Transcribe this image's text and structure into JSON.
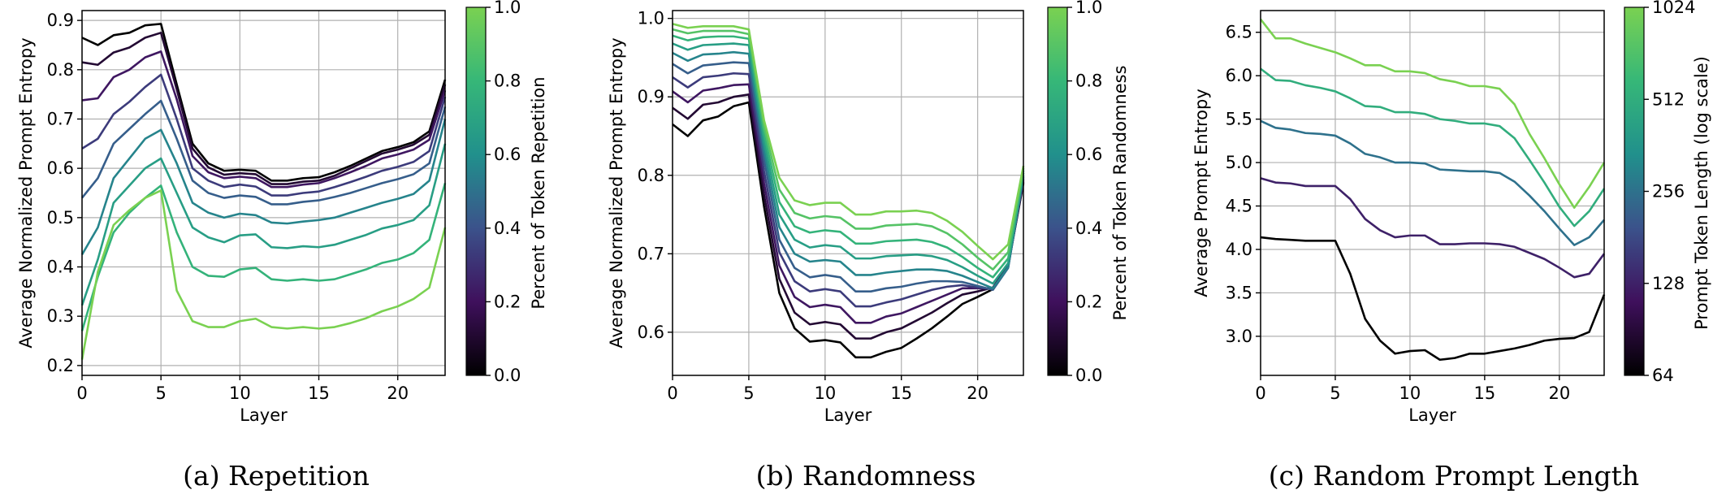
{
  "chart_data": [
    {
      "type": "line",
      "caption": "(a) Repetition",
      "xlabel": "Layer",
      "ylabel": "Average Normalized Prompt Entropy",
      "xlim": [
        0,
        23
      ],
      "ylim": [
        0.18,
        0.92
      ],
      "xticks": [
        0,
        5,
        10,
        15,
        20
      ],
      "yticks": [
        0.2,
        0.3,
        0.4,
        0.5,
        0.6,
        0.7,
        0.8,
        0.9
      ],
      "grid": true,
      "colorbar": {
        "label": "Percent of Token Repetition",
        "ticks": [
          "0.0",
          "0.2",
          "0.4",
          "0.6",
          "0.8",
          "1.0"
        ],
        "scale": "linear",
        "range": [
          0,
          1
        ]
      },
      "series": [
        {
          "c": 0.0,
          "values": [
            0.865,
            0.85,
            0.87,
            0.875,
            0.89,
            0.893,
            0.77,
            0.65,
            0.61,
            0.595,
            0.597,
            0.595,
            0.575,
            0.575,
            0.58,
            0.582,
            0.592,
            0.605,
            0.62,
            0.635,
            0.643,
            0.653,
            0.675,
            0.78
          ]
        },
        {
          "c": 0.11,
          "values": [
            0.815,
            0.81,
            0.835,
            0.845,
            0.865,
            0.875,
            0.76,
            0.64,
            0.602,
            0.587,
            0.59,
            0.588,
            0.568,
            0.568,
            0.573,
            0.575,
            0.585,
            0.6,
            0.615,
            0.63,
            0.638,
            0.648,
            0.668,
            0.77
          ]
        },
        {
          "c": 0.22,
          "values": [
            0.738,
            0.742,
            0.785,
            0.8,
            0.825,
            0.837,
            0.74,
            0.625,
            0.592,
            0.58,
            0.583,
            0.58,
            0.562,
            0.562,
            0.567,
            0.57,
            0.58,
            0.592,
            0.605,
            0.62,
            0.628,
            0.638,
            0.658,
            0.758
          ]
        },
        {
          "c": 0.33,
          "values": [
            0.64,
            0.66,
            0.71,
            0.735,
            0.765,
            0.79,
            0.7,
            0.6,
            0.575,
            0.562,
            0.567,
            0.563,
            0.545,
            0.545,
            0.55,
            0.553,
            0.562,
            0.572,
            0.583,
            0.595,
            0.603,
            0.613,
            0.635,
            0.745
          ]
        },
        {
          "c": 0.44,
          "values": [
            0.54,
            0.58,
            0.65,
            0.68,
            0.71,
            0.737,
            0.66,
            0.575,
            0.55,
            0.54,
            0.545,
            0.542,
            0.527,
            0.527,
            0.532,
            0.535,
            0.542,
            0.55,
            0.56,
            0.57,
            0.578,
            0.588,
            0.61,
            0.725
          ]
        },
        {
          "c": 0.56,
          "values": [
            0.425,
            0.48,
            0.58,
            0.62,
            0.66,
            0.678,
            0.61,
            0.53,
            0.51,
            0.5,
            0.508,
            0.505,
            0.49,
            0.488,
            0.492,
            0.495,
            0.5,
            0.51,
            0.52,
            0.53,
            0.538,
            0.548,
            0.575,
            0.7
          ]
        },
        {
          "c": 0.67,
          "values": [
            0.322,
            0.415,
            0.53,
            0.565,
            0.6,
            0.62,
            0.55,
            0.48,
            0.46,
            0.45,
            0.464,
            0.466,
            0.44,
            0.438,
            0.442,
            0.44,
            0.445,
            0.455,
            0.465,
            0.478,
            0.485,
            0.495,
            0.525,
            0.65
          ]
        },
        {
          "c": 0.78,
          "values": [
            0.27,
            0.38,
            0.47,
            0.51,
            0.54,
            0.565,
            0.47,
            0.4,
            0.382,
            0.38,
            0.395,
            0.398,
            0.375,
            0.372,
            0.375,
            0.372,
            0.375,
            0.385,
            0.395,
            0.408,
            0.415,
            0.428,
            0.455,
            0.57
          ]
        },
        {
          "c": 1.0,
          "values": [
            0.212,
            0.39,
            0.485,
            0.515,
            0.54,
            0.555,
            0.352,
            0.29,
            0.278,
            0.278,
            0.29,
            0.295,
            0.278,
            0.275,
            0.278,
            0.275,
            0.278,
            0.286,
            0.296,
            0.31,
            0.32,
            0.335,
            0.358,
            0.48
          ]
        }
      ]
    },
    {
      "type": "line",
      "caption": "(b) Randomness",
      "xlabel": "Layer",
      "ylabel": "Average Normalized Prompt Entropy",
      "xlim": [
        0,
        23
      ],
      "ylim": [
        0.545,
        1.01
      ],
      "xticks": [
        0,
        5,
        10,
        15,
        20
      ],
      "yticks": [
        0.6,
        0.7,
        0.8,
        0.9,
        1.0
      ],
      "grid": true,
      "colorbar": {
        "label": "Percent of Token Randomness",
        "ticks": [
          "0.0",
          "0.2",
          "0.4",
          "0.6",
          "0.8",
          "1.0"
        ],
        "scale": "linear",
        "range": [
          0,
          1
        ]
      },
      "series": [
        {
          "c": 0.0,
          "values": [
            0.865,
            0.85,
            0.87,
            0.875,
            0.888,
            0.893,
            0.76,
            0.65,
            0.605,
            0.588,
            0.59,
            0.587,
            0.568,
            0.568,
            0.575,
            0.58,
            0.592,
            0.605,
            0.62,
            0.636,
            0.645,
            0.655,
            0.685,
            0.79
          ]
        },
        {
          "c": 0.11,
          "values": [
            0.886,
            0.872,
            0.89,
            0.893,
            0.9,
            0.903,
            0.775,
            0.668,
            0.625,
            0.61,
            0.613,
            0.61,
            0.592,
            0.592,
            0.6,
            0.605,
            0.615,
            0.625,
            0.637,
            0.648,
            0.652,
            0.657,
            0.685,
            0.792
          ]
        },
        {
          "c": 0.22,
          "values": [
            0.907,
            0.893,
            0.908,
            0.911,
            0.915,
            0.916,
            0.79,
            0.685,
            0.645,
            0.632,
            0.635,
            0.632,
            0.612,
            0.612,
            0.62,
            0.624,
            0.632,
            0.64,
            0.648,
            0.656,
            0.656,
            0.656,
            0.684,
            0.794
          ]
        },
        {
          "c": 0.33,
          "values": [
            0.925,
            0.912,
            0.925,
            0.927,
            0.93,
            0.929,
            0.805,
            0.702,
            0.665,
            0.652,
            0.655,
            0.652,
            0.633,
            0.633,
            0.638,
            0.642,
            0.648,
            0.654,
            0.658,
            0.66,
            0.657,
            0.655,
            0.683,
            0.796
          ]
        },
        {
          "c": 0.44,
          "values": [
            0.942,
            0.93,
            0.94,
            0.942,
            0.944,
            0.943,
            0.82,
            0.718,
            0.682,
            0.67,
            0.673,
            0.67,
            0.652,
            0.652,
            0.656,
            0.658,
            0.662,
            0.665,
            0.665,
            0.664,
            0.659,
            0.654,
            0.682,
            0.798
          ]
        },
        {
          "c": 0.56,
          "values": [
            0.956,
            0.946,
            0.954,
            0.955,
            0.957,
            0.955,
            0.832,
            0.734,
            0.7,
            0.69,
            0.692,
            0.69,
            0.673,
            0.673,
            0.676,
            0.678,
            0.68,
            0.68,
            0.678,
            0.672,
            0.664,
            0.656,
            0.683,
            0.8
          ]
        },
        {
          "c": 0.67,
          "values": [
            0.968,
            0.96,
            0.966,
            0.967,
            0.968,
            0.966,
            0.843,
            0.75,
            0.718,
            0.708,
            0.711,
            0.709,
            0.694,
            0.694,
            0.697,
            0.698,
            0.699,
            0.697,
            0.692,
            0.683,
            0.672,
            0.662,
            0.688,
            0.803
          ]
        },
        {
          "c": 0.78,
          "values": [
            0.978,
            0.972,
            0.976,
            0.977,
            0.977,
            0.974,
            0.853,
            0.766,
            0.735,
            0.727,
            0.73,
            0.728,
            0.713,
            0.713,
            0.716,
            0.717,
            0.718,
            0.715,
            0.708,
            0.696,
            0.682,
            0.67,
            0.694,
            0.806
          ]
        },
        {
          "c": 0.89,
          "values": [
            0.986,
            0.981,
            0.984,
            0.984,
            0.984,
            0.98,
            0.862,
            0.782,
            0.752,
            0.745,
            0.748,
            0.746,
            0.732,
            0.732,
            0.736,
            0.737,
            0.738,
            0.735,
            0.726,
            0.712,
            0.695,
            0.68,
            0.702,
            0.809
          ]
        },
        {
          "c": 1.0,
          "values": [
            0.993,
            0.988,
            0.99,
            0.99,
            0.99,
            0.986,
            0.87,
            0.797,
            0.768,
            0.762,
            0.765,
            0.765,
            0.75,
            0.75,
            0.754,
            0.754,
            0.755,
            0.752,
            0.742,
            0.728,
            0.71,
            0.693,
            0.712,
            0.812
          ]
        }
      ]
    },
    {
      "type": "line",
      "caption": "(c) Random Prompt Length",
      "xlabel": "Layer",
      "ylabel": "Average Prompt Entropy",
      "xlim": [
        0,
        23
      ],
      "ylim": [
        2.55,
        6.75
      ],
      "xticks": [
        0,
        5,
        10,
        15,
        20
      ],
      "yticks": [
        3.0,
        3.5,
        4.0,
        4.5,
        5.0,
        5.5,
        6.0,
        6.5
      ],
      "grid": true,
      "colorbar": {
        "label": "Prompt Token Length (log scale)",
        "ticks": [
          "64",
          "128",
          "256",
          "512",
          "1024"
        ],
        "scale": "log2",
        "range": [
          64,
          1024
        ]
      },
      "series": [
        {
          "c": 64,
          "values": [
            4.14,
            4.12,
            4.11,
            4.1,
            4.1,
            4.1,
            3.72,
            3.2,
            2.95,
            2.8,
            2.83,
            2.84,
            2.73,
            2.75,
            2.8,
            2.8,
            2.83,
            2.86,
            2.9,
            2.95,
            2.97,
            2.98,
            3.05,
            3.48
          ]
        },
        {
          "c": 128,
          "values": [
            4.82,
            4.77,
            4.76,
            4.73,
            4.73,
            4.73,
            4.58,
            4.35,
            4.22,
            4.14,
            4.16,
            4.16,
            4.06,
            4.06,
            4.07,
            4.07,
            4.06,
            4.03,
            3.96,
            3.89,
            3.79,
            3.68,
            3.72,
            3.95
          ]
        },
        {
          "c": 256,
          "values": [
            5.48,
            5.4,
            5.38,
            5.34,
            5.33,
            5.31,
            5.22,
            5.1,
            5.06,
            5.0,
            5.0,
            4.99,
            4.92,
            4.91,
            4.9,
            4.9,
            4.88,
            4.78,
            4.62,
            4.44,
            4.24,
            4.05,
            4.14,
            4.34
          ]
        },
        {
          "c": 512,
          "values": [
            6.08,
            5.95,
            5.94,
            5.89,
            5.86,
            5.82,
            5.74,
            5.65,
            5.64,
            5.58,
            5.58,
            5.56,
            5.5,
            5.48,
            5.45,
            5.45,
            5.42,
            5.28,
            5.03,
            4.77,
            4.49,
            4.27,
            4.44,
            4.7
          ]
        },
        {
          "c": 1024,
          "values": [
            6.65,
            6.43,
            6.43,
            6.37,
            6.32,
            6.27,
            6.2,
            6.12,
            6.12,
            6.05,
            6.05,
            6.03,
            5.96,
            5.93,
            5.88,
            5.88,
            5.85,
            5.67,
            5.33,
            5.05,
            4.75,
            4.48,
            4.72,
            5.0
          ]
        }
      ]
    }
  ]
}
